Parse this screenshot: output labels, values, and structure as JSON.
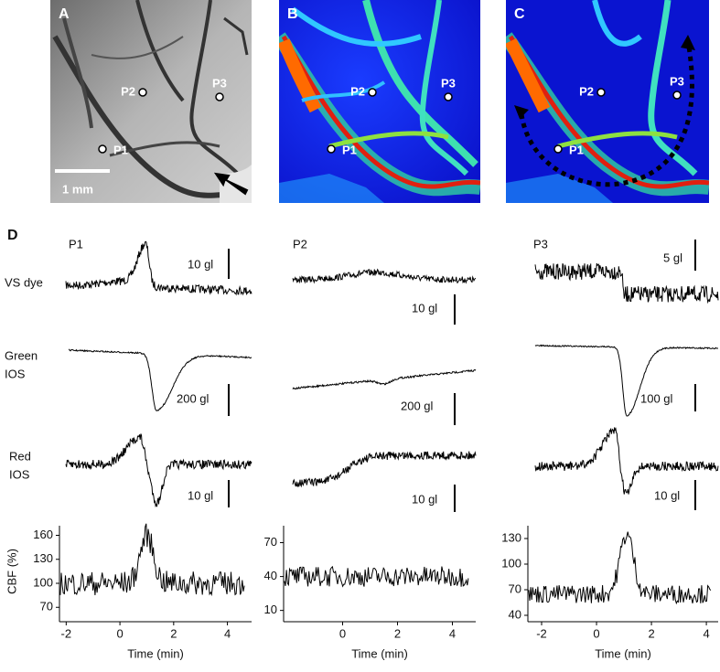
{
  "panels": {
    "A": {
      "label": "A",
      "points": [
        "P1",
        "P2",
        "P3"
      ],
      "scale_bar": "1 mm"
    },
    "B": {
      "label": "B",
      "points": [
        "P1",
        "P2",
        "P3"
      ]
    },
    "C": {
      "label": "C",
      "points": [
        "P1",
        "P2",
        "P3"
      ]
    }
  },
  "panel_d": {
    "label": "D",
    "columns": [
      "P1",
      "P2",
      "P3"
    ],
    "rows": [
      [
        "VS dye"
      ],
      [
        "Green",
        "IOS"
      ],
      [
        "Red",
        "IOS"
      ]
    ],
    "scale_labels": [
      [
        "10 gl",
        "200 gl",
        "10 gl"
      ],
      [
        "10 gl",
        "200 gl",
        "10 gl"
      ],
      [
        "5 gl",
        "100 gl",
        "10 gl"
      ]
    ]
  },
  "cbf": {
    "ylabel": "CBF (%)",
    "xlabel": "Time (min)",
    "plots": [
      {
        "xlim": [
          -2.25,
          4.9
        ],
        "xticks": [
          -2,
          0,
          2,
          4
        ],
        "ylim": [
          52,
          172
        ],
        "yticks": [
          70,
          100,
          130,
          160
        ]
      },
      {
        "xlim": [
          -2.15,
          4.85
        ],
        "xticks": [
          0,
          2,
          4
        ],
        "ylim": [
          0,
          85
        ],
        "yticks": [
          10,
          40,
          70
        ]
      },
      {
        "xlim": [
          -2.5,
          4.43
        ],
        "xticks": [
          -2,
          0,
          2,
          4
        ],
        "ylim": [
          32.5,
          145
        ],
        "yticks": [
          40,
          70,
          100,
          130
        ]
      }
    ]
  }
}
